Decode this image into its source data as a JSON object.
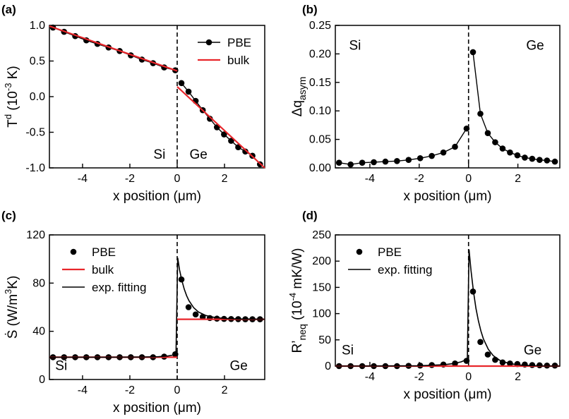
{
  "chart_data": [
    {
      "panel": "(a)",
      "type": "line",
      "xlabel": "x position (μm)",
      "ylabel": "T^d (10^-3 K)",
      "ylabel_parts": {
        "main": "T",
        "sup": "d",
        "rest": " (10",
        "sup2": "-3",
        "end": " K)"
      },
      "xlim": [
        -5.4,
        3.7
      ],
      "ylim": [
        -1.0,
        1.0
      ],
      "xticks": [
        -4,
        -2,
        0,
        2
      ],
      "yticks": [
        -1.0,
        -0.5,
        0.0,
        0.5,
        1.0
      ],
      "ytick_labels": [
        "-1.0",
        "-0.5",
        "0.0",
        "0.5",
        "1.0"
      ],
      "interface_x": 0,
      "annotations": [
        {
          "text": "Si",
          "x": -0.75,
          "y": -0.87
        },
        {
          "text": "Ge",
          "x": 0.9,
          "y": -0.87
        }
      ],
      "legend": {
        "position": "top-right",
        "entries": [
          {
            "label": "PBE",
            "style": "marker-line"
          },
          {
            "label": "bulk",
            "style": "red-line"
          }
        ]
      },
      "series": [
        {
          "name": "PBE",
          "style": "marker-line",
          "x": [
            -5.25,
            -4.78,
            -4.31,
            -3.84,
            -3.37,
            -2.9,
            -2.43,
            -1.96,
            -1.49,
            -1.02,
            -0.55,
            -0.08
          ],
          "y": [
            0.97,
            0.91,
            0.85,
            0.79,
            0.74,
            0.69,
            0.64,
            0.58,
            0.52,
            0.47,
            0.41,
            0.37
          ]
        },
        {
          "name": "PBE",
          "style": "marker-line",
          "x": [
            0.18,
            0.48,
            0.78,
            1.08,
            1.38,
            1.68,
            1.98,
            2.28,
            2.58,
            2.88,
            3.18,
            3.5
          ],
          "y": [
            0.19,
            0.07,
            -0.06,
            -0.19,
            -0.31,
            -0.43,
            -0.53,
            -0.62,
            -0.71,
            -0.77,
            -0.83,
            -0.95
          ]
        },
        {
          "name": "bulk",
          "style": "red-line",
          "x": [
            -5.4,
            0
          ],
          "y": [
            0.99,
            0.36
          ]
        },
        {
          "name": "bulk",
          "style": "red-line",
          "x": [
            0,
            3.7
          ],
          "y": [
            0.14,
            -1.0
          ]
        }
      ]
    },
    {
      "panel": "(b)",
      "type": "line",
      "xlabel": "x position (μm)",
      "ylabel": "Δq_asym",
      "ylabel_parts": {
        "main": "Δq",
        "sub": "asym"
      },
      "xlim": [
        -5.4,
        3.7
      ],
      "ylim": [
        0,
        0.25
      ],
      "xticks": [
        -4,
        -2,
        0,
        2
      ],
      "yticks": [
        0,
        0.05,
        0.1,
        0.15,
        0.2,
        0.25
      ],
      "ytick_labels": [
        "0.00",
        "0.05",
        "0.10",
        "0.15",
        "0.20",
        "0.25"
      ],
      "interface_x": 0,
      "annotations": [
        {
          "text": "Si",
          "x": -4.6,
          "y": 0.207
        },
        {
          "text": "Ge",
          "x": 2.7,
          "y": 0.207
        }
      ],
      "series": [
        {
          "name": "PBE",
          "style": "marker-line",
          "x": [
            -5.25,
            -4.78,
            -4.31,
            -3.84,
            -3.37,
            -2.9,
            -2.43,
            -1.96,
            -1.49,
            -1.02,
            -0.55,
            -0.08
          ],
          "y": [
            0.009,
            0.006,
            0.009,
            0.01,
            0.011,
            0.012,
            0.014,
            0.017,
            0.021,
            0.027,
            0.037,
            0.069
          ]
        },
        {
          "name": "PBE",
          "style": "marker-line",
          "x": [
            0.18,
            0.48,
            0.78,
            1.08,
            1.38,
            1.68,
            1.98,
            2.28,
            2.58,
            2.88,
            3.18,
            3.5
          ],
          "y": [
            0.203,
            0.095,
            0.061,
            0.045,
            0.034,
            0.027,
            0.022,
            0.018,
            0.016,
            0.014,
            0.013,
            0.011
          ]
        }
      ]
    },
    {
      "panel": "(c)",
      "type": "line",
      "xlabel": "x position (μm)",
      "ylabel": "Ṡ (W/m^3K)",
      "ylabel_parts": {
        "main": "Ṡ (W/m",
        "sup": "3",
        "rest": "K)"
      },
      "xlim": [
        -5.4,
        3.7
      ],
      "ylim": [
        0,
        120
      ],
      "xticks": [
        -4,
        -2,
        0,
        2
      ],
      "yticks": [
        0,
        40,
        80,
        120
      ],
      "ytick_labels": [
        "0",
        "40",
        "80",
        "120"
      ],
      "interface_x": 0,
      "annotations": [
        {
          "text": "Si",
          "x": -4.9,
          "y": 8
        },
        {
          "text": "Ge",
          "x": 2.6,
          "y": 8
        }
      ],
      "legend": {
        "position": "top-left",
        "entries": [
          {
            "label": "PBE",
            "style": "marker"
          },
          {
            "label": "bulk",
            "style": "red-line"
          },
          {
            "label": "exp. fitting",
            "style": "black-line"
          }
        ]
      },
      "series": [
        {
          "name": "PBE",
          "style": "marker",
          "x": [
            -5.25,
            -4.78,
            -4.31,
            -3.84,
            -3.37,
            -2.9,
            -2.43,
            -1.96,
            -1.49,
            -1.02,
            -0.55,
            -0.08,
            0.18,
            0.48,
            0.78,
            1.08,
            1.38,
            1.68,
            1.98,
            2.28,
            2.58,
            2.88,
            3.18,
            3.5
          ],
          "y": [
            18.5,
            18.5,
            18.5,
            18.5,
            18.5,
            18.5,
            18.5,
            18.5,
            18.5,
            18.5,
            19,
            21,
            83,
            60,
            54,
            52,
            51,
            50.5,
            50.3,
            50.2,
            50.1,
            50,
            50,
            50
          ]
        },
        {
          "name": "bulk",
          "style": "red-line",
          "x": [
            -5.4,
            0
          ],
          "y": [
            18.5,
            18.5
          ]
        },
        {
          "name": "bulk",
          "style": "red-line",
          "x": [
            0,
            3.7
          ],
          "y": [
            50,
            50
          ]
        },
        {
          "name": "exp. fitting",
          "style": "black-line",
          "x": [
            -5.4,
            -3.0,
            -1.5,
            -0.8,
            -0.4,
            -0.2,
            -0.05,
            0.02,
            0.1,
            0.2,
            0.3,
            0.4,
            0.5,
            0.7,
            0.9,
            1.2,
            1.6,
            2.0,
            2.6,
            3.7
          ],
          "y": [
            18.5,
            18.5,
            18.6,
            18.9,
            19.5,
            20.2,
            21.5,
            101,
            91,
            82,
            75,
            69.5,
            65.4,
            59.5,
            56.0,
            53.2,
            51.4,
            50.7,
            50.2,
            50.0
          ]
        }
      ]
    },
    {
      "panel": "(d)",
      "type": "line",
      "xlabel": "x position (μm)",
      "ylabel": "R'_neq (10^-4 mK/W)",
      "ylabel_parts": {
        "main": "R’",
        "sub": "neq",
        "rest": " (10",
        "sup": "-4",
        "end": " mK/W)"
      },
      "xlim": [
        -5.4,
        3.7
      ],
      "ylim": [
        0,
        250
      ],
      "xticks": [
        -4,
        -2,
        0,
        2
      ],
      "yticks": [
        0,
        50,
        100,
        150,
        200,
        250
      ],
      "ytick_labels": [
        "0",
        "50",
        "100",
        "150",
        "200",
        "250"
      ],
      "interface_x": 0,
      "annotations": [
        {
          "text": "Si",
          "x": -4.9,
          "y": 22
        },
        {
          "text": "Ge",
          "x": 2.6,
          "y": 22
        }
      ],
      "legend": {
        "position": "top-left",
        "entries": [
          {
            "label": "PBE",
            "style": "marker"
          },
          {
            "label": "exp. fitting",
            "style": "black-line"
          }
        ]
      },
      "series": [
        {
          "name": "PBE",
          "style": "marker",
          "x": [
            -5.25,
            -4.78,
            -4.31,
            -3.84,
            -3.37,
            -2.9,
            -2.43,
            -1.96,
            -1.49,
            -1.02,
            -0.55,
            -0.08,
            0.18,
            0.48,
            0.78,
            1.08,
            1.38,
            1.68,
            1.98,
            2.28,
            2.58,
            2.88,
            3.18,
            3.5
          ],
          "y": [
            0,
            0,
            0,
            0,
            0,
            0,
            0.5,
            1,
            2,
            3,
            5,
            10,
            142,
            46,
            22,
            12,
            7,
            5,
            4,
            3,
            2,
            1.5,
            1,
            1
          ]
        },
        {
          "name": "bulk",
          "style": "red-line",
          "x": [
            -5.4,
            3.7
          ],
          "y": [
            0,
            0
          ]
        },
        {
          "name": "exp. fitting",
          "style": "black-line",
          "x": [
            -5.4,
            -2.0,
            -1.0,
            -0.6,
            -0.3,
            -0.15,
            -0.05,
            0.02,
            0.1,
            0.2,
            0.3,
            0.4,
            0.5,
            0.6,
            0.8,
            1.0,
            1.3,
            1.7,
            2.2,
            3.0,
            3.7
          ],
          "y": [
            0,
            0.5,
            2.5,
            5,
            8,
            11,
            14,
            222,
            182,
            142,
            110,
            86,
            67,
            52,
            32,
            20,
            10,
            4.5,
            1.5,
            0.3,
            0
          ]
        }
      ]
    }
  ]
}
